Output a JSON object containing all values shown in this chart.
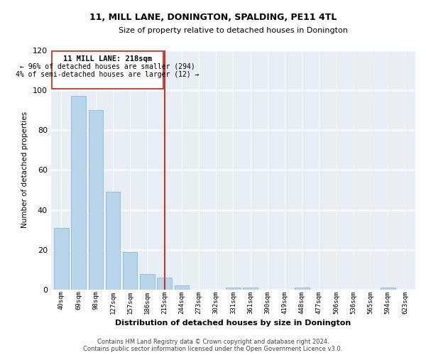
{
  "title": "11, MILL LANE, DONINGTON, SPALDING, PE11 4TL",
  "subtitle": "Size of property relative to detached houses in Donington",
  "xlabel": "Distribution of detached houses by size in Donington",
  "ylabel": "Number of detached properties",
  "bar_labels": [
    "40sqm",
    "69sqm",
    "98sqm",
    "127sqm",
    "157sqm",
    "186sqm",
    "215sqm",
    "244sqm",
    "273sqm",
    "302sqm",
    "331sqm",
    "361sqm",
    "390sqm",
    "419sqm",
    "448sqm",
    "477sqm",
    "506sqm",
    "536sqm",
    "565sqm",
    "594sqm",
    "623sqm"
  ],
  "bar_values": [
    31,
    97,
    90,
    49,
    19,
    8,
    6,
    2,
    0,
    0,
    1,
    1,
    0,
    0,
    1,
    0,
    0,
    0,
    0,
    1,
    0
  ],
  "bar_color": "#b8d4e8",
  "marker_index": 6,
  "marker_label": "11 MILL LANE: 218sqm",
  "annotation_line1": "← 96% of detached houses are smaller (294)",
  "annotation_line2": "4% of semi-detached houses are larger (12) →",
  "marker_color": "#c0392b",
  "ylim": [
    0,
    120
  ],
  "yticks": [
    0,
    20,
    40,
    60,
    80,
    100,
    120
  ],
  "plot_bg_color": "#e8eef5",
  "footer1": "Contains HM Land Registry data © Crown copyright and database right 2024.",
  "footer2": "Contains public sector information licensed under the Open Government Licence v3.0."
}
